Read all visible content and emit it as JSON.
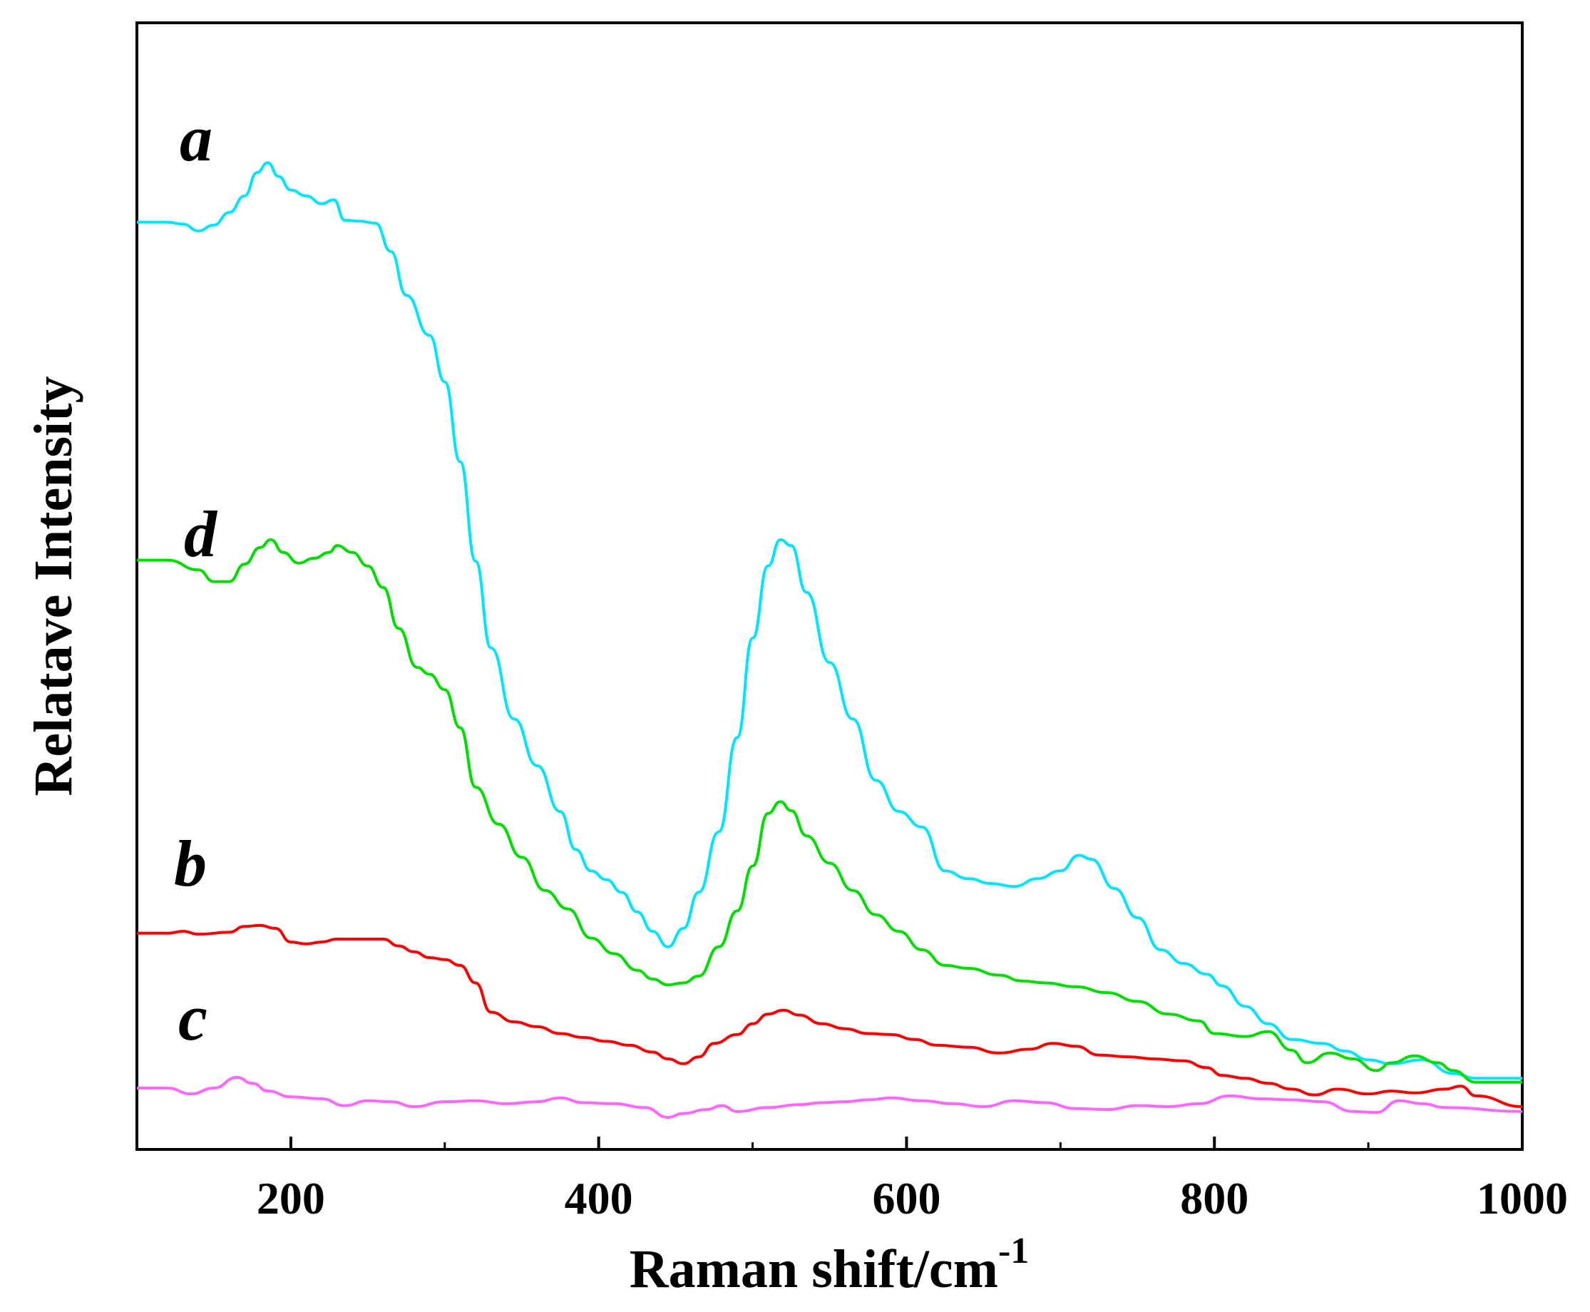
{
  "chart_data": {
    "type": "line",
    "title": "",
    "xlabel": "Raman shift/cm",
    "xlabel_superscript": "-1",
    "ylabel": "Relatave Intensity",
    "xlim": [
      100,
      1000
    ],
    "ylim": [
      0,
      100
    ],
    "xticks": [
      200,
      400,
      600,
      800,
      1000
    ],
    "xtick_labels": [
      "200",
      "400",
      "600",
      "800",
      "1000"
    ],
    "minor_xticks": [
      300,
      500,
      700,
      900
    ],
    "grid": false,
    "legend": "inline labels",
    "series": [
      {
        "name": "a",
        "color": "#00e5ff",
        "points": [
          [
            100,
            88.9
          ],
          [
            120,
            88.9
          ],
          [
            130,
            88.7
          ],
          [
            140,
            88.0
          ],
          [
            150,
            88.6
          ],
          [
            160,
            89.9
          ],
          [
            170,
            91.6
          ],
          [
            178,
            94.0
          ],
          [
            185,
            95.0
          ],
          [
            192,
            93.6
          ],
          [
            200,
            92.2
          ],
          [
            210,
            91.6
          ],
          [
            220,
            90.8
          ],
          [
            228,
            91.2
          ],
          [
            235,
            89.1
          ],
          [
            245,
            89.0
          ],
          [
            255,
            88.8
          ],
          [
            265,
            85.9
          ],
          [
            275,
            81.4
          ],
          [
            290,
            77.3
          ],
          [
            300,
            72.5
          ],
          [
            310,
            64.3
          ],
          [
            320,
            54.1
          ],
          [
            330,
            45.2
          ],
          [
            345,
            37.9
          ],
          [
            360,
            33.1
          ],
          [
            375,
            28.4
          ],
          [
            385,
            24.5
          ],
          [
            395,
            22.3
          ],
          [
            405,
            21.4
          ],
          [
            415,
            20.1
          ],
          [
            425,
            18.1
          ],
          [
            435,
            16.1
          ],
          [
            445,
            14.5
          ],
          [
            455,
            16.4
          ],
          [
            465,
            20.1
          ],
          [
            478,
            26.3
          ],
          [
            490,
            36.0
          ],
          [
            500,
            46.2
          ],
          [
            510,
            53.6
          ],
          [
            518,
            56.3
          ],
          [
            525,
            55.7
          ],
          [
            535,
            50.9
          ],
          [
            550,
            43.7
          ],
          [
            565,
            37.9
          ],
          [
            580,
            31.6
          ],
          [
            595,
            28.4
          ],
          [
            610,
            26.8
          ],
          [
            625,
            22.3
          ],
          [
            640,
            21.5
          ],
          [
            655,
            21.0
          ],
          [
            670,
            20.7
          ],
          [
            685,
            21.5
          ],
          [
            700,
            22.3
          ],
          [
            712,
            23.9
          ],
          [
            720,
            23.5
          ],
          [
            735,
            20.5
          ],
          [
            750,
            17.5
          ],
          [
            765,
            14.2
          ],
          [
            780,
            12.8
          ],
          [
            795,
            11.7
          ],
          [
            805,
            10.5
          ],
          [
            820,
            8.4
          ],
          [
            835,
            6.6
          ],
          [
            850,
            5.0
          ],
          [
            870,
            4.6
          ],
          [
            885,
            3.8
          ],
          [
            900,
            2.9
          ],
          [
            915,
            2.5
          ],
          [
            935,
            2.9
          ],
          [
            955,
            1.5
          ],
          [
            970,
            1.0
          ],
          [
            1000,
            1.0
          ]
        ]
      },
      {
        "name": "d",
        "color": "#00dd00",
        "points": [
          [
            100,
            54.2
          ],
          [
            120,
            54.2
          ],
          [
            140,
            53.2
          ],
          [
            150,
            52.0
          ],
          [
            160,
            52.0
          ],
          [
            170,
            53.8
          ],
          [
            180,
            55.5
          ],
          [
            187,
            56.3
          ],
          [
            195,
            55.0
          ],
          [
            205,
            53.9
          ],
          [
            215,
            54.4
          ],
          [
            225,
            55.0
          ],
          [
            230,
            55.7
          ],
          [
            240,
            55.0
          ],
          [
            250,
            53.6
          ],
          [
            260,
            51.4
          ],
          [
            270,
            47.2
          ],
          [
            282,
            43.2
          ],
          [
            290,
            42.5
          ],
          [
            300,
            40.9
          ],
          [
            310,
            37.0
          ],
          [
            320,
            30.9
          ],
          [
            335,
            27.1
          ],
          [
            350,
            23.7
          ],
          [
            365,
            20.3
          ],
          [
            380,
            18.4
          ],
          [
            395,
            15.4
          ],
          [
            410,
            13.8
          ],
          [
            425,
            12.1
          ],
          [
            435,
            11.2
          ],
          [
            445,
            10.6
          ],
          [
            455,
            10.8
          ],
          [
            465,
            11.5
          ],
          [
            478,
            14.5
          ],
          [
            490,
            18.2
          ],
          [
            500,
            22.8
          ],
          [
            510,
            28.2
          ],
          [
            518,
            29.4
          ],
          [
            525,
            28.5
          ],
          [
            535,
            25.9
          ],
          [
            550,
            23.1
          ],
          [
            565,
            20.3
          ],
          [
            580,
            17.8
          ],
          [
            595,
            16.1
          ],
          [
            610,
            14.2
          ],
          [
            625,
            12.6
          ],
          [
            640,
            12.3
          ],
          [
            660,
            11.6
          ],
          [
            675,
            11.0
          ],
          [
            690,
            10.8
          ],
          [
            710,
            10.4
          ],
          [
            730,
            9.8
          ],
          [
            750,
            8.9
          ],
          [
            770,
            7.6
          ],
          [
            790,
            6.9
          ],
          [
            800,
            5.6
          ],
          [
            820,
            5.3
          ],
          [
            835,
            5.8
          ],
          [
            850,
            3.9
          ],
          [
            860,
            2.6
          ],
          [
            875,
            3.6
          ],
          [
            890,
            3.0
          ],
          [
            905,
            1.8
          ],
          [
            915,
            2.6
          ],
          [
            930,
            3.3
          ],
          [
            945,
            2.6
          ],
          [
            955,
            1.8
          ],
          [
            970,
            0.6
          ],
          [
            1000,
            0.6
          ]
        ]
      },
      {
        "name": "b",
        "color": "#ff0000",
        "points": [
          [
            100,
            15.9
          ],
          [
            120,
            15.9
          ],
          [
            130,
            16.1
          ],
          [
            140,
            15.8
          ],
          [
            160,
            16.0
          ],
          [
            170,
            16.6
          ],
          [
            180,
            16.7
          ],
          [
            190,
            16.4
          ],
          [
            200,
            15.0
          ],
          [
            210,
            14.8
          ],
          [
            220,
            15.0
          ],
          [
            230,
            15.3
          ],
          [
            260,
            15.3
          ],
          [
            270,
            14.6
          ],
          [
            280,
            14.0
          ],
          [
            290,
            13.4
          ],
          [
            300,
            13.2
          ],
          [
            310,
            12.6
          ],
          [
            320,
            10.8
          ],
          [
            330,
            7.8
          ],
          [
            345,
            6.8
          ],
          [
            360,
            6.3
          ],
          [
            375,
            5.6
          ],
          [
            390,
            5.2
          ],
          [
            405,
            4.8
          ],
          [
            420,
            4.4
          ],
          [
            435,
            3.7
          ],
          [
            445,
            3.0
          ],
          [
            455,
            2.5
          ],
          [
            465,
            3.2
          ],
          [
            475,
            4.6
          ],
          [
            490,
            5.5
          ],
          [
            500,
            6.6
          ],
          [
            510,
            7.6
          ],
          [
            520,
            8.0
          ],
          [
            530,
            7.5
          ],
          [
            545,
            6.6
          ],
          [
            560,
            6.1
          ],
          [
            575,
            5.6
          ],
          [
            590,
            5.5
          ],
          [
            605,
            5.0
          ],
          [
            620,
            4.4
          ],
          [
            640,
            4.2
          ],
          [
            660,
            3.6
          ],
          [
            680,
            4.0
          ],
          [
            695,
            4.6
          ],
          [
            710,
            4.3
          ],
          [
            725,
            3.4
          ],
          [
            745,
            3.2
          ],
          [
            760,
            3.0
          ],
          [
            780,
            2.8
          ],
          [
            795,
            2.1
          ],
          [
            805,
            1.3
          ],
          [
            820,
            1.0
          ],
          [
            835,
            0.5
          ],
          [
            850,
            -0.1
          ],
          [
            865,
            -0.7
          ],
          [
            880,
            -0.1
          ],
          [
            900,
            -0.6
          ],
          [
            915,
            -0.3
          ],
          [
            930,
            -0.5
          ],
          [
            950,
            -0.1
          ],
          [
            960,
            0.2
          ],
          [
            970,
            -0.8
          ],
          [
            1000,
            -1.9
          ]
        ]
      },
      {
        "name": "c",
        "color": "#ff66ff",
        "points": [
          [
            100,
            0.0
          ],
          [
            120,
            0.0
          ],
          [
            135,
            -0.6
          ],
          [
            150,
            0.0
          ],
          [
            165,
            1.1
          ],
          [
            175,
            0.5
          ],
          [
            185,
            -0.3
          ],
          [
            200,
            -0.9
          ],
          [
            220,
            -1.1
          ],
          [
            235,
            -1.8
          ],
          [
            250,
            -1.3
          ],
          [
            265,
            -1.4
          ],
          [
            280,
            -1.9
          ],
          [
            300,
            -1.4
          ],
          [
            320,
            -1.3
          ],
          [
            340,
            -1.6
          ],
          [
            360,
            -1.4
          ],
          [
            375,
            -1.0
          ],
          [
            390,
            -1.5
          ],
          [
            410,
            -1.6
          ],
          [
            430,
            -2.0
          ],
          [
            445,
            -3.0
          ],
          [
            455,
            -2.6
          ],
          [
            470,
            -2.2
          ],
          [
            480,
            -1.8
          ],
          [
            490,
            -2.4
          ],
          [
            510,
            -2.0
          ],
          [
            530,
            -1.7
          ],
          [
            545,
            -1.5
          ],
          [
            560,
            -1.4
          ],
          [
            575,
            -1.2
          ],
          [
            590,
            -1.0
          ],
          [
            610,
            -1.3
          ],
          [
            630,
            -1.6
          ],
          [
            650,
            -1.9
          ],
          [
            670,
            -1.3
          ],
          [
            690,
            -1.5
          ],
          [
            710,
            -2.1
          ],
          [
            730,
            -2.2
          ],
          [
            750,
            -1.8
          ],
          [
            770,
            -1.9
          ],
          [
            790,
            -1.6
          ],
          [
            810,
            -0.8
          ],
          [
            830,
            -1.1
          ],
          [
            850,
            -1.2
          ],
          [
            870,
            -1.4
          ],
          [
            890,
            -2.4
          ],
          [
            905,
            -2.5
          ],
          [
            920,
            -1.3
          ],
          [
            935,
            -1.6
          ],
          [
            950,
            -2.0
          ],
          [
            1000,
            -2.4
          ]
        ]
      }
    ]
  },
  "series_labels": {
    "a": "a",
    "b": "b",
    "c": "c",
    "d": "d"
  }
}
